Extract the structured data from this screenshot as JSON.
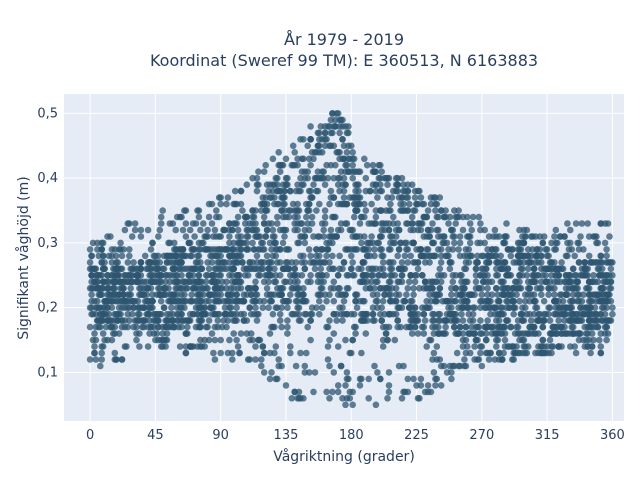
{
  "chart_data": {
    "type": "scatter",
    "title_line1": "År 1979 - 2019",
    "title_line2": "Koordinat (Sweref 99 TM): E 360513, N 6163883",
    "xlabel": "Vågriktning (grader)",
    "ylabel": "Signifikant våghöjd (m)",
    "xlim": [
      -18,
      368
    ],
    "ylim": [
      0.025,
      0.53
    ],
    "xticks": [
      0,
      45,
      90,
      135,
      180,
      225,
      270,
      315,
      360
    ],
    "xtick_labels": [
      "0",
      "45",
      "90",
      "135",
      "180",
      "225",
      "270",
      "315",
      "360"
    ],
    "yticks": [
      0.1,
      0.2,
      0.3,
      0.4,
      0.5
    ],
    "ytick_labels": [
      "0,1",
      "0,2",
      "0,3",
      "0,4",
      "0,5"
    ],
    "grid": true,
    "legend": false,
    "colors": {
      "marker": "#2e5670",
      "plot_bg": "#e5ecf6",
      "grid": "#ffffff",
      "text": "#2a3f5f"
    },
    "envelope": {
      "x": [
        0,
        15,
        30,
        45,
        60,
        75,
        90,
        105,
        120,
        135,
        150,
        160,
        170,
        180,
        195,
        210,
        225,
        240,
        255,
        270,
        285,
        300,
        315,
        330,
        345,
        360
      ],
      "core_low": [
        0.17,
        0.17,
        0.17,
        0.17,
        0.17,
        0.17,
        0.18,
        0.18,
        0.18,
        0.19,
        0.18,
        0.18,
        0.18,
        0.18,
        0.17,
        0.17,
        0.16,
        0.15,
        0.15,
        0.15,
        0.15,
        0.15,
        0.15,
        0.16,
        0.16,
        0.17
      ],
      "core_high": [
        0.27,
        0.27,
        0.27,
        0.28,
        0.29,
        0.3,
        0.32,
        0.34,
        0.37,
        0.41,
        0.44,
        0.46,
        0.49,
        0.43,
        0.39,
        0.38,
        0.36,
        0.34,
        0.32,
        0.3,
        0.29,
        0.29,
        0.28,
        0.28,
        0.28,
        0.27
      ],
      "outer_low": [
        0.12,
        0.1,
        0.12,
        0.13,
        0.13,
        0.12,
        0.12,
        0.11,
        0.1,
        0.06,
        0.06,
        0.05,
        0.05,
        0.05,
        0.05,
        0.06,
        0.05,
        0.07,
        0.1,
        0.11,
        0.12,
        0.12,
        0.13,
        0.13,
        0.13,
        0.13
      ],
      "outer_high": [
        0.3,
        0.32,
        0.34,
        0.35,
        0.35,
        0.36,
        0.37,
        0.39,
        0.42,
        0.46,
        0.48,
        0.5,
        0.51,
        0.47,
        0.43,
        0.41,
        0.39,
        0.37,
        0.35,
        0.34,
        0.33,
        0.32,
        0.32,
        0.33,
        0.34,
        0.33
      ]
    }
  }
}
